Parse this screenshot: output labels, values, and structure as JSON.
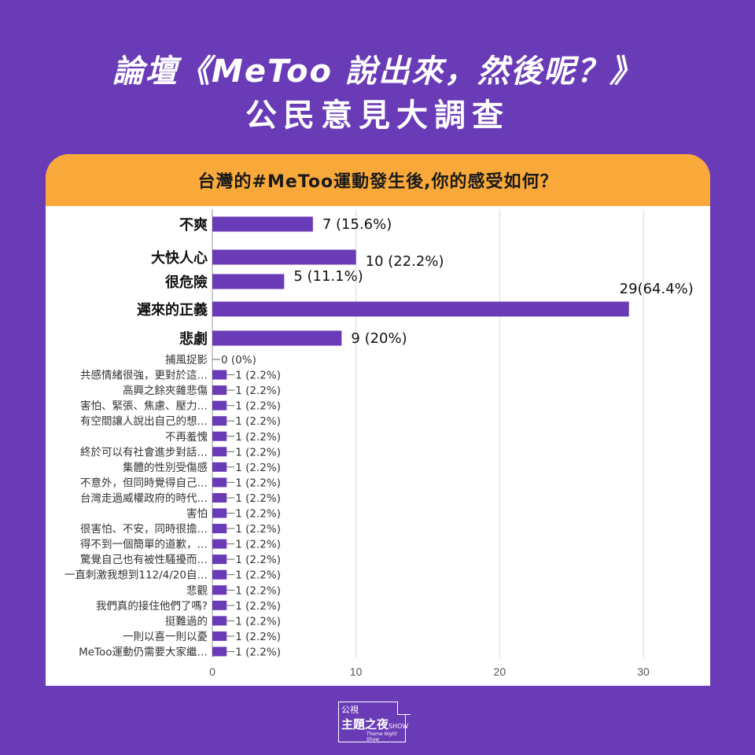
{
  "header": {
    "title_line1": "論壇《MeToo 說出來，然後呢？》",
    "title_line2": "公民意見大調查"
  },
  "card": {
    "question": "台灣的#MeToo運動發生後,你的感受如何？"
  },
  "logo": {
    "top_text": "公視",
    "main_text": "主題之夜",
    "show_text": "SHOW",
    "sub_text": "Theme Night Show"
  },
  "colors": {
    "background": "#6a3bb6",
    "bar": "#6a3bb6",
    "header_band": "#f9a93a"
  },
  "chart_data": {
    "type": "bar",
    "orientation": "horizontal",
    "xlim": [
      0,
      30
    ],
    "x_ticks": [
      0,
      10,
      20,
      30
    ],
    "grid": true,
    "categories": [
      "不爽",
      "大快人心",
      "很危險",
      "遲來的正義",
      "悲劇",
      "捕風捉影",
      "共感情緒很強，更對於這…",
      "高興之餘夾雜悲傷",
      "害怕、緊張、焦慮、壓力…",
      "有空間讓人說出自己的想…",
      "不再羞愧",
      "終於可以有社會進步對話…",
      "集體的性別受傷感",
      "不意外，但同時覺得自己…",
      "台灣走過威權政府的時代…",
      "害怕",
      "很害怕、不安，同時很擔…",
      "得不到一個簡單的道歉，…",
      "驚覺自己也有被性騷擾而…",
      "一直刺激我想到112/4/20自…",
      "悲觀",
      "我們真的接住他們了嗎?",
      "挺難過的",
      "一則以喜一則以憂",
      "MeToo運動仍需要大家繼…"
    ],
    "values": [
      7,
      10,
      5,
      29,
      9,
      0,
      1,
      1,
      1,
      1,
      1,
      1,
      1,
      1,
      1,
      1,
      1,
      1,
      1,
      1,
      1,
      1,
      1,
      1,
      1
    ],
    "value_labels": [
      "7 (15.6%)",
      "10 (22.2%)",
      "5 (11.1%)",
      "29(64.4%)",
      "9 (20%)",
      "0 (0%)",
      "1 (2.2%)",
      "1 (2.2%)",
      "1 (2.2%)",
      "1 (2.2%)",
      "1 (2.2%)",
      "1 (2.2%)",
      "1 (2.2%)",
      "1 (2.2%)",
      "1 (2.2%)",
      "1 (2.2%)",
      "1 (2.2%)",
      "1 (2.2%)",
      "1 (2.2%)",
      "1 (2.2%)",
      "1 (2.2%)",
      "1 (2.2%)",
      "1 (2.2%)",
      "1 (2.2%)",
      "1 (2.2%)"
    ],
    "emphasized_count": 5
  }
}
